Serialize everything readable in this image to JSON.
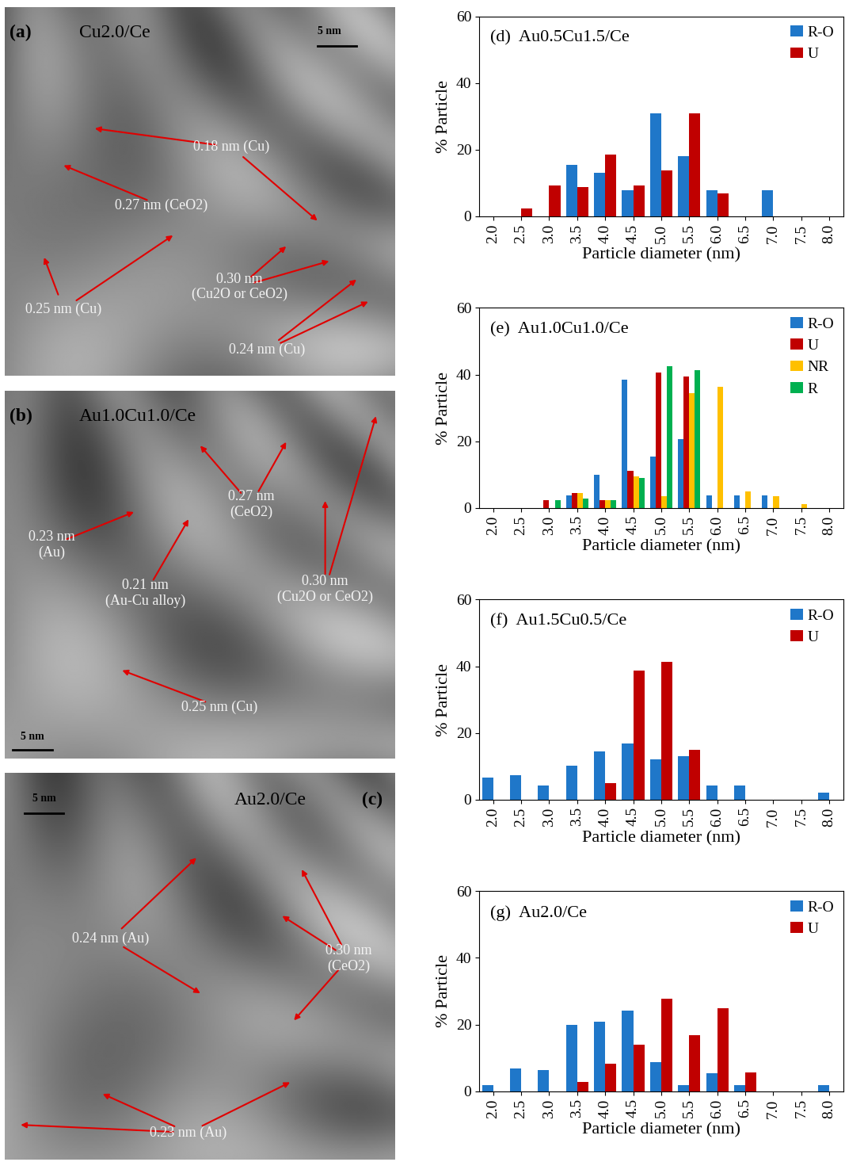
{
  "images": [
    {
      "label": "(a)",
      "title": "Cu2.0/Ce",
      "scale_bar": "5 nm",
      "annotations": [
        "0.18 nm (Cu)",
        "0.27 nm (CeO2)",
        "0.25 nm (Cu)",
        "0.30 nm\n(Cu2O or CeO2)",
        "0.24 nm (Cu)"
      ]
    },
    {
      "label": "(b)",
      "title": "Au1.0Cu1.0/Ce",
      "scale_bar": "5 nm",
      "annotations": [
        "0.27 nm\n(CeO2)",
        "0.23 nm\n(Au)",
        "0.21 nm\n(Au-Cu alloy)",
        "0.30 nm\n(Cu2O or CeO2)",
        "0.25 nm (Cu)"
      ]
    },
    {
      "label": "(c)",
      "title": "Au2.0/Ce",
      "scale_bar": "5 nm",
      "annotations": [
        "0.24 nm (Au)",
        "0.30 nm\n(CeO2)",
        "0.23 nm (Au)"
      ]
    }
  ],
  "chart_data": [
    {
      "type": "bar",
      "title": "(d)  Au0.5Cu1.5/Ce",
      "x_label": "Particle diameter (nm)",
      "y_label": "% Particle",
      "categories": [
        "2.0",
        "2.5",
        "3.0",
        "3.5",
        "4.0",
        "4.5",
        "5.0",
        "5.5",
        "6.0",
        "6.5",
        "7.0",
        "7.5",
        "8.0"
      ],
      "ylim": [
        0,
        60
      ],
      "yticks": [
        0,
        20,
        40,
        60
      ],
      "legend": "upper right",
      "series": [
        {
          "name": "R-O",
          "color": "#1f77c9",
          "values": [
            0,
            0,
            0,
            15.4,
            13.0,
            7.7,
            30.8,
            17.9,
            7.7,
            0,
            7.7,
            0,
            0
          ]
        },
        {
          "name": "U",
          "color": "#c00000",
          "values": [
            0,
            2.2,
            9.1,
            8.7,
            18.6,
            9.1,
            13.8,
            30.9,
            6.8,
            0,
            0,
            0,
            0
          ]
        }
      ]
    },
    {
      "type": "bar",
      "title": "(e)  Au1.0Cu1.0/Ce",
      "x_label": "Particle diameter (nm)",
      "y_label": "% Particle",
      "categories": [
        "2.0",
        "2.5",
        "3.0",
        "3.5",
        "4.0",
        "4.5",
        "5.0",
        "5.5",
        "6.0",
        "6.5",
        "7.0",
        "7.5",
        "8.0"
      ],
      "ylim": [
        0,
        60
      ],
      "yticks": [
        0,
        20,
        40,
        60
      ],
      "legend": "upper right",
      "series": [
        {
          "name": "R-O",
          "color": "#1f77c9",
          "values": [
            0,
            0,
            0,
            3.8,
            10.0,
            38.5,
            15.4,
            20.5,
            3.8,
            3.8,
            3.8,
            0,
            0
          ]
        },
        {
          "name": "U",
          "color": "#c00000",
          "values": [
            0,
            0,
            2.3,
            4.5,
            2.3,
            11.0,
            40.7,
            39.3,
            0,
            0,
            0,
            0,
            0
          ]
        },
        {
          "name": "NR",
          "color": "#ffc000",
          "values": [
            0,
            0,
            0,
            4.5,
            2.3,
            9.5,
            3.5,
            34.4,
            36.4,
            4.8,
            3.5,
            1.0,
            0
          ]
        },
        {
          "name": "R",
          "color": "#00b050",
          "values": [
            0,
            0,
            2.3,
            2.8,
            2.3,
            9.0,
            42.5,
            41.2,
            0,
            0,
            0,
            0,
            0
          ]
        }
      ]
    },
    {
      "type": "bar",
      "title": "(f)  Au1.5Cu0.5/Ce",
      "x_label": "Particle diameter (nm)",
      "y_label": "% Particle",
      "categories": [
        "2.0",
        "2.5",
        "3.0",
        "3.5",
        "4.0",
        "4.5",
        "5.0",
        "5.5",
        "6.0",
        "6.5",
        "7.0",
        "7.5",
        "8.0"
      ],
      "ylim": [
        0,
        60
      ],
      "yticks": [
        0,
        20,
        40,
        60
      ],
      "legend": "upper right",
      "series": [
        {
          "name": "R-O",
          "color": "#1f77c9",
          "values": [
            6.5,
            7.4,
            4.1,
            10.2,
            14.5,
            16.7,
            12.0,
            13.0,
            4.1,
            4.1,
            0,
            0,
            2.0
          ]
        },
        {
          "name": "U",
          "color": "#c00000",
          "values": [
            0,
            0,
            0,
            0,
            4.8,
            38.7,
            41.3,
            14.8,
            0,
            0,
            0,
            0,
            0
          ]
        }
      ]
    },
    {
      "type": "bar",
      "title": "(g)  Au2.0/Ce",
      "x_label": "Particle diameter (nm)",
      "y_label": "% Particle",
      "categories": [
        "2.0",
        "2.5",
        "3.0",
        "3.5",
        "4.0",
        "4.5",
        "5.0",
        "5.5",
        "6.0",
        "6.5",
        "7.0",
        "7.5",
        "8.0"
      ],
      "ylim": [
        0,
        60
      ],
      "yticks": [
        0,
        20,
        40,
        60
      ],
      "legend": "upper right",
      "series": [
        {
          "name": "R-O",
          "color": "#1f77c9",
          "values": [
            1.7,
            6.7,
            6.3,
            20.0,
            20.8,
            24.2,
            8.8,
            1.7,
            5.4,
            1.7,
            0,
            0,
            1.7
          ]
        },
        {
          "name": "U",
          "color": "#c00000",
          "values": [
            0,
            0,
            0,
            2.8,
            8.3,
            13.9,
            27.8,
            16.7,
            25.0,
            5.6,
            0,
            0,
            0
          ]
        }
      ]
    }
  ]
}
